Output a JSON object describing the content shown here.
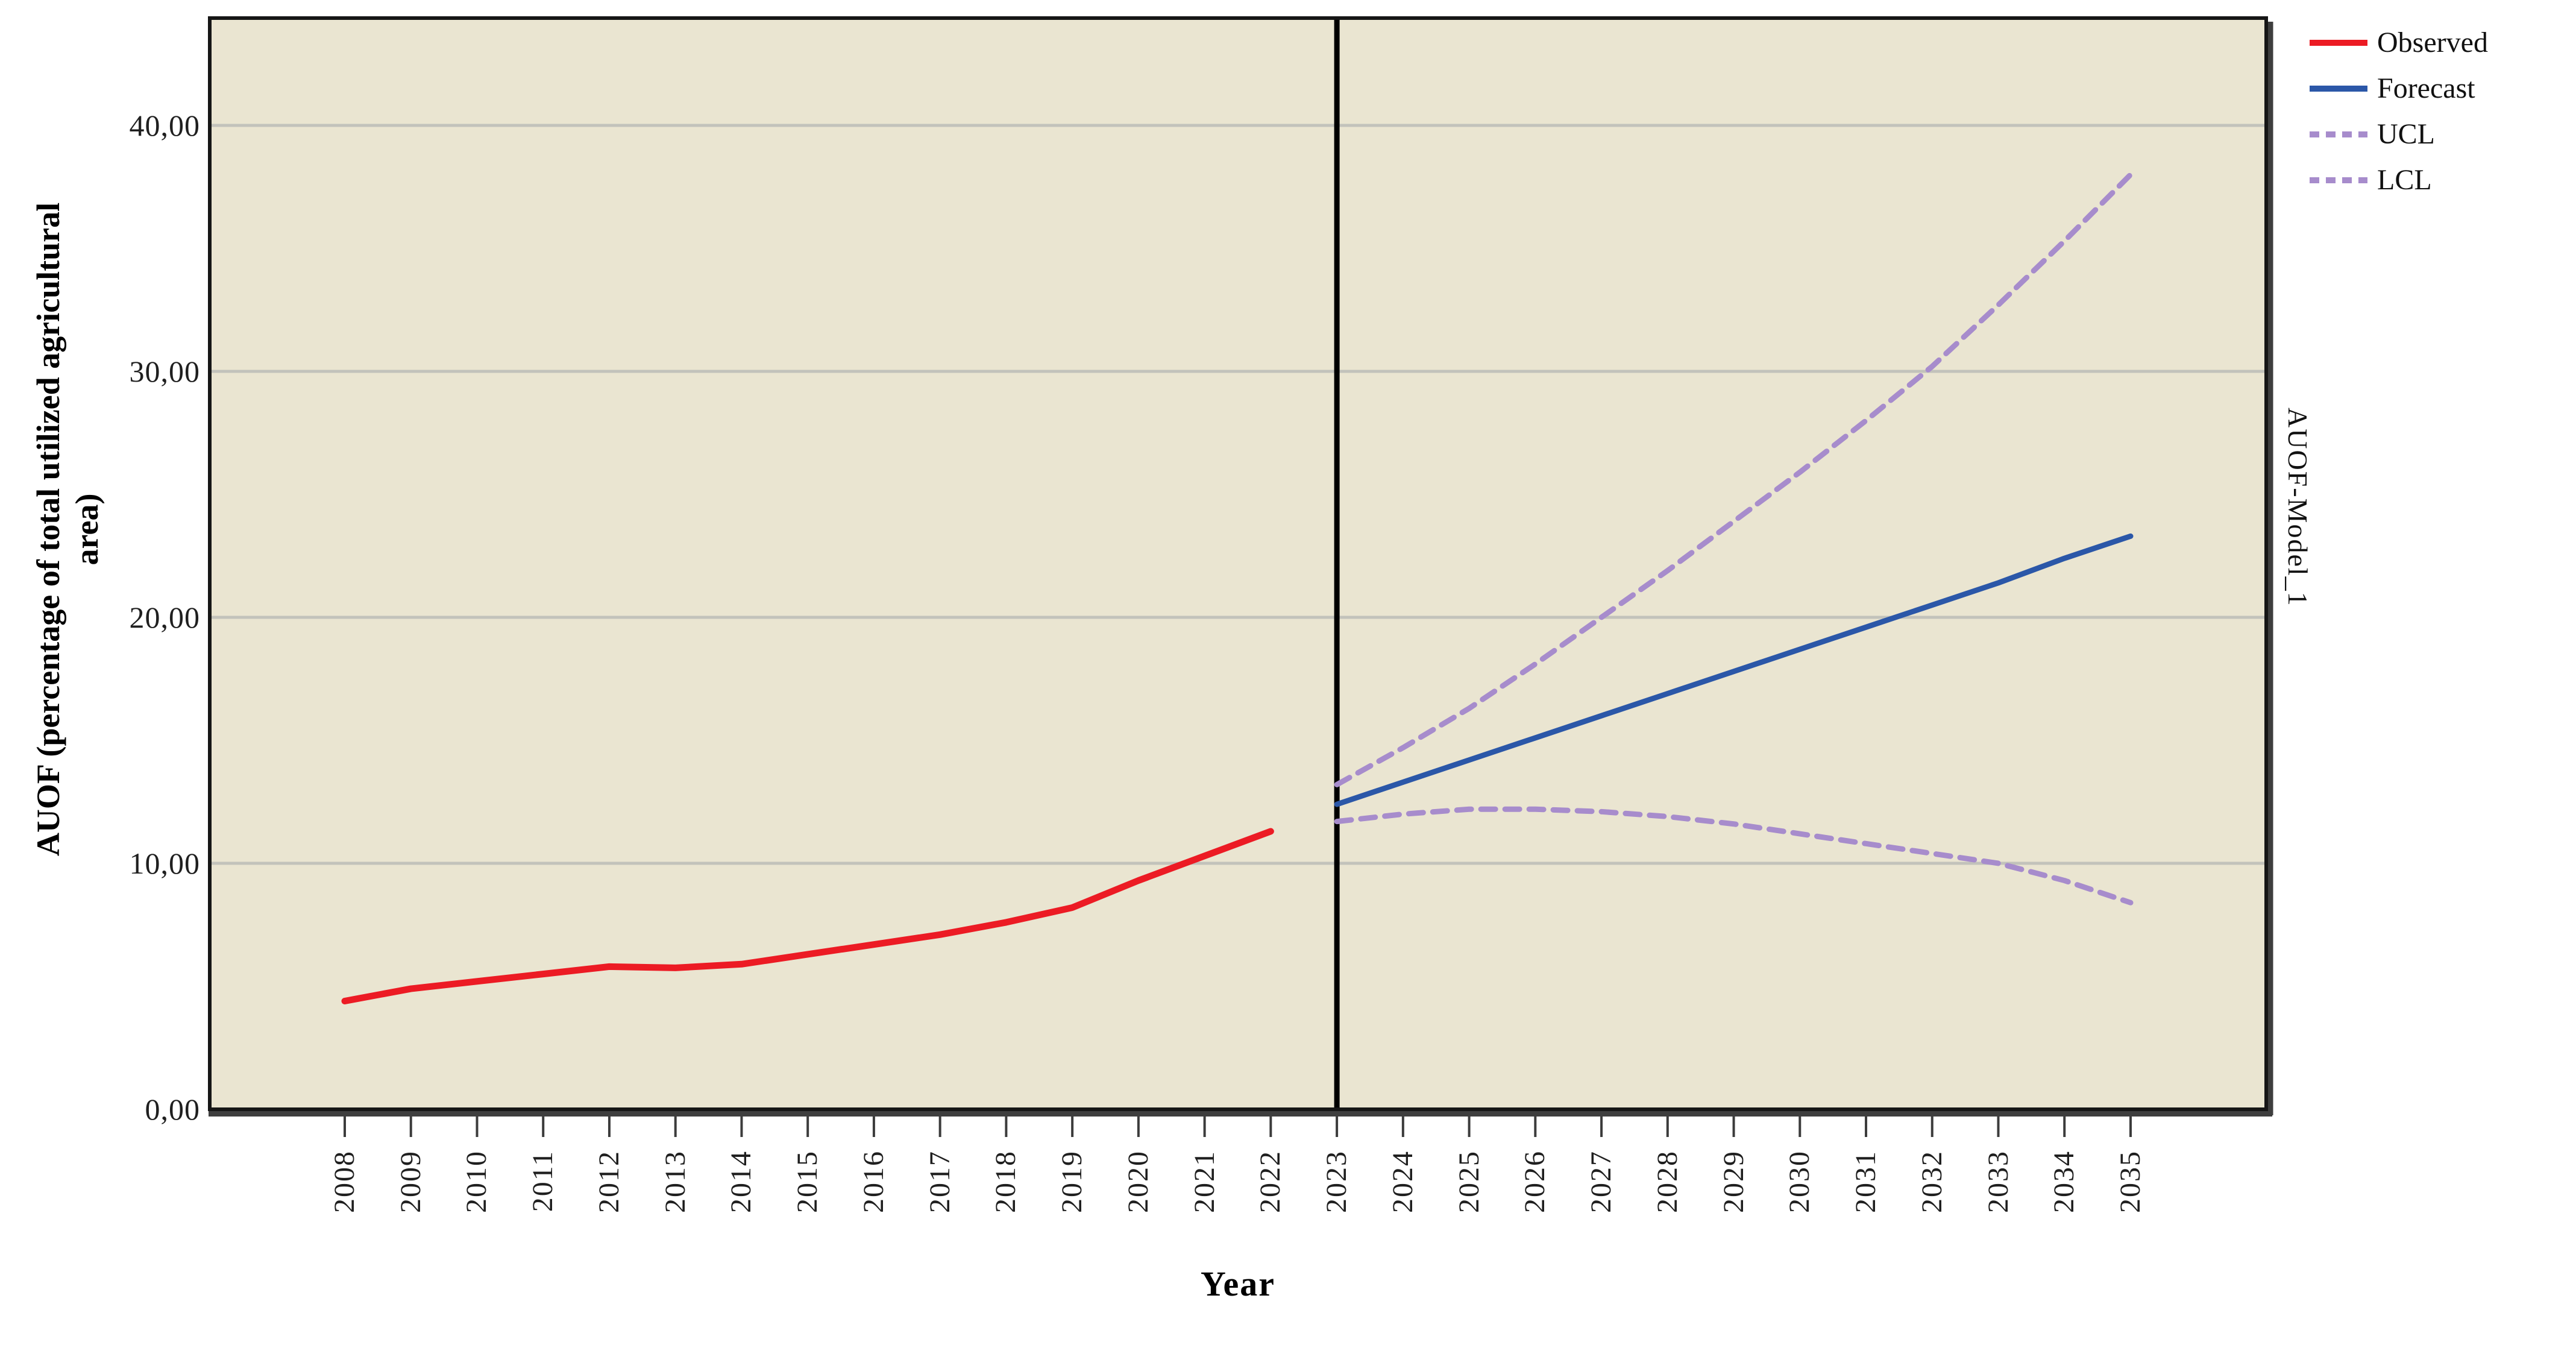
{
  "chart_data": {
    "type": "line",
    "title": "",
    "xlabel": "Year",
    "ylabel": "AUOF (percentage of total utilized agricultural area)",
    "ylabel_lines": [
      "AUOF (percentage of total utilized agricultural",
      "area)"
    ],
    "right_label": "AUOF-Model_1",
    "x_start": 2008,
    "x_categories": [
      "2008",
      "2009",
      "2010",
      "2011",
      "2012",
      "2013",
      "2014",
      "2015",
      "2016",
      "2017",
      "2018",
      "2019",
      "2020",
      "2021",
      "2022",
      "2023",
      "2024",
      "2025",
      "2026",
      "2027",
      "2028",
      "2029",
      "2030",
      "2031",
      "2032",
      "2033",
      "2034",
      "2035"
    ],
    "forecast_divider_year": 2023,
    "ylim": [
      0,
      44.4
    ],
    "grid": true,
    "legend_position": "outside-top-right",
    "y_axis": {
      "ticks": [
        {
          "label": "0,00",
          "value": 0
        },
        {
          "label": "10,00",
          "value": 10
        },
        {
          "label": "20,00",
          "value": 20
        },
        {
          "label": "30,00",
          "value": 30
        },
        {
          "label": "40,00",
          "value": 40
        }
      ]
    },
    "series": [
      {
        "name": "Observed",
        "style": "solid",
        "color": "#ec1b24",
        "start_year": 2008,
        "values": [
          4.4,
          4.9,
          5.2,
          5.5,
          5.8,
          5.75,
          5.9,
          6.3,
          6.7,
          7.1,
          7.6,
          8.2,
          9.3,
          10.3,
          11.3
        ]
      },
      {
        "name": "Forecast",
        "style": "solid",
        "color": "#2b57a8",
        "start_year": 2023,
        "values": [
          12.4,
          13.3,
          14.2,
          15.1,
          16.0,
          16.9,
          17.8,
          18.7,
          19.6,
          20.5,
          21.4,
          22.4,
          23.3
        ]
      },
      {
        "name": "UCL",
        "style": "dashed",
        "color": "#a78ccc",
        "start_year": 2023,
        "values": [
          13.2,
          14.7,
          16.3,
          18.1,
          20.0,
          21.9,
          23.9,
          25.9,
          28.0,
          30.2,
          32.7,
          35.3,
          38.0
        ]
      },
      {
        "name": "LCL",
        "style": "dashed",
        "color": "#a78ccc",
        "start_year": 2023,
        "values": [
          11.7,
          12.0,
          12.2,
          12.2,
          12.1,
          11.9,
          11.6,
          11.2,
          10.8,
          10.4,
          10.0,
          9.3,
          8.4
        ]
      }
    ],
    "colors": {
      "plot_background": "#eae5d1",
      "gridline": "#c2c2bb",
      "border": "#161616",
      "border_shadow": "#3e3e3e",
      "divider": "#000000",
      "tick_mark": "#3c3c3c"
    }
  },
  "legend": {
    "items": [
      {
        "label": "Observed"
      },
      {
        "label": "Forecast"
      },
      {
        "label": "UCL"
      },
      {
        "label": "LCL"
      }
    ]
  }
}
